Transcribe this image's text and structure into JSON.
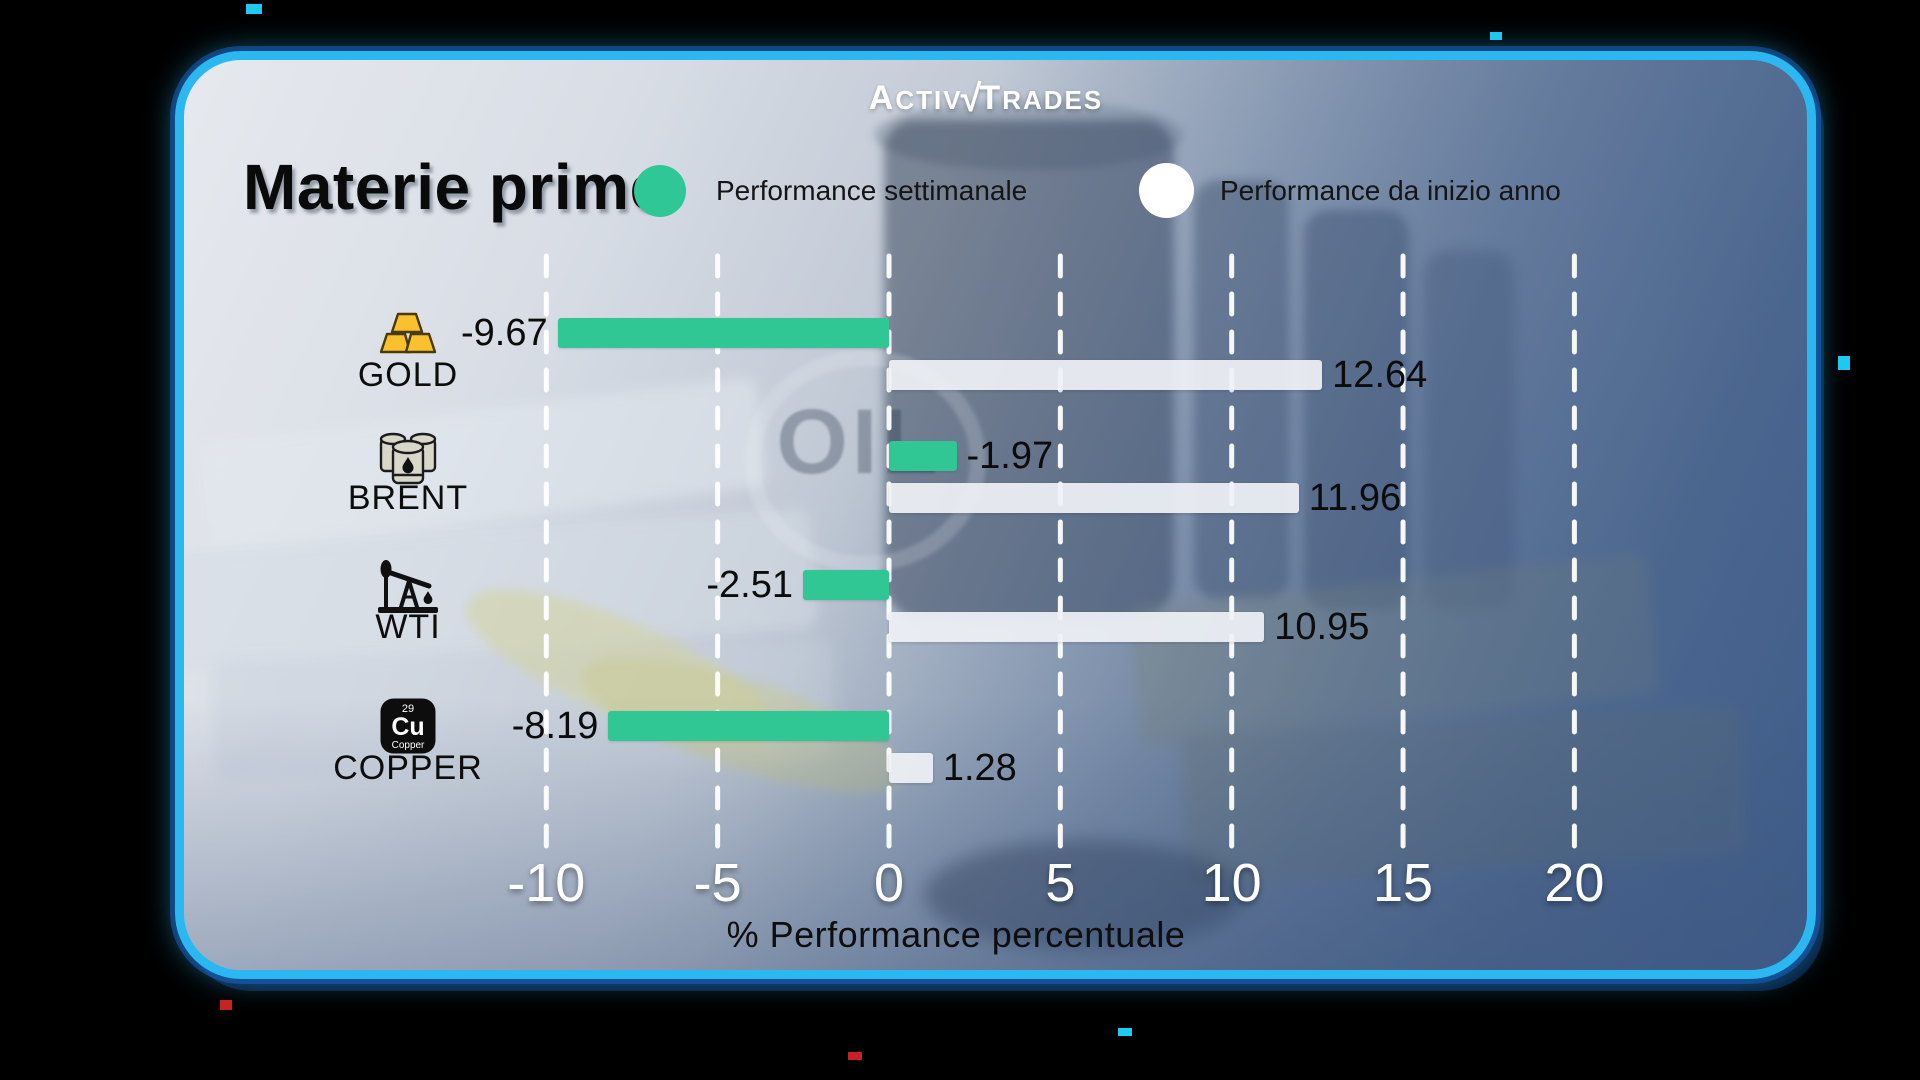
{
  "brand": {
    "logo": {
      "prefix_cap": "A",
      "prefix_rest": "CTIV",
      "check": "√",
      "suffix_cap": "T",
      "suffix_rest": "RADES"
    }
  },
  "header": {
    "title": "Materie prime",
    "legend": [
      {
        "label": "Performance settimanale",
        "color": "#2fc796",
        "swatch": "green-dot"
      },
      {
        "label": "Performance da inizio anno",
        "color": "#ffffff",
        "swatch": "white-dot"
      }
    ]
  },
  "background": {
    "oil_barrel_text": "OIL"
  },
  "chart_data": {
    "type": "bar",
    "orientation": "horizontal",
    "title": "Materie prime",
    "xlabel": "% Performance percentuale",
    "xlim": [
      -10,
      20
    ],
    "xticks": [
      "-10",
      "-5",
      "0",
      "5",
      "10",
      "15",
      "20"
    ],
    "xtick_values": [
      -10,
      -5,
      0,
      5,
      10,
      15,
      20
    ],
    "grid": "vertical-dashed-white",
    "legend_position": "top",
    "categories": [
      "GOLD",
      "BRENT",
      "WTI",
      "COPPER"
    ],
    "series": [
      {
        "name": "Performance settimanale",
        "color": "#2fc796",
        "values": [
          -9.67,
          -1.97,
          -2.51,
          -8.19
        ]
      },
      {
        "name": "Performance da inizio anno",
        "color": "#eef1f5",
        "values": [
          12.64,
          11.96,
          10.95,
          1.28
        ]
      }
    ],
    "rows": [
      {
        "category": "GOLD",
        "icon": "gold-bars-icon",
        "weekly": -9.67,
        "weekly_label": "-9.67",
        "weekly_bar_side": "left",
        "ytd": 12.64,
        "ytd_label": "12.64"
      },
      {
        "category": "BRENT",
        "icon": "oil-barrels-icon",
        "weekly": -1.97,
        "weekly_label": "-1.97",
        "weekly_bar_side": "right",
        "ytd": 11.96,
        "ytd_label": "11.96"
      },
      {
        "category": "WTI",
        "icon": "oil-pumpjack-icon",
        "weekly": -2.51,
        "weekly_label": "-2.51",
        "weekly_bar_side": "left",
        "ytd": 10.95,
        "ytd_label": "10.95"
      },
      {
        "category": "COPPER",
        "icon": "copper-element-icon",
        "weekly": -8.19,
        "weekly_label": "-8.19",
        "weekly_bar_side": "left",
        "ytd": 1.28,
        "ytd_label": "1.28"
      }
    ]
  },
  "copper_icon": {
    "atomic_number": "29",
    "symbol": "Cu",
    "element_name": "Copper"
  },
  "colors": {
    "weekly_bar": "#31c795",
    "ytd_bar": "#eef1f5",
    "card_border": "#2bb8f0",
    "grid": "#ffffff",
    "tick_label": "#ffffff",
    "value_label": "#0c0c0c",
    "outer_background": "#000000"
  }
}
